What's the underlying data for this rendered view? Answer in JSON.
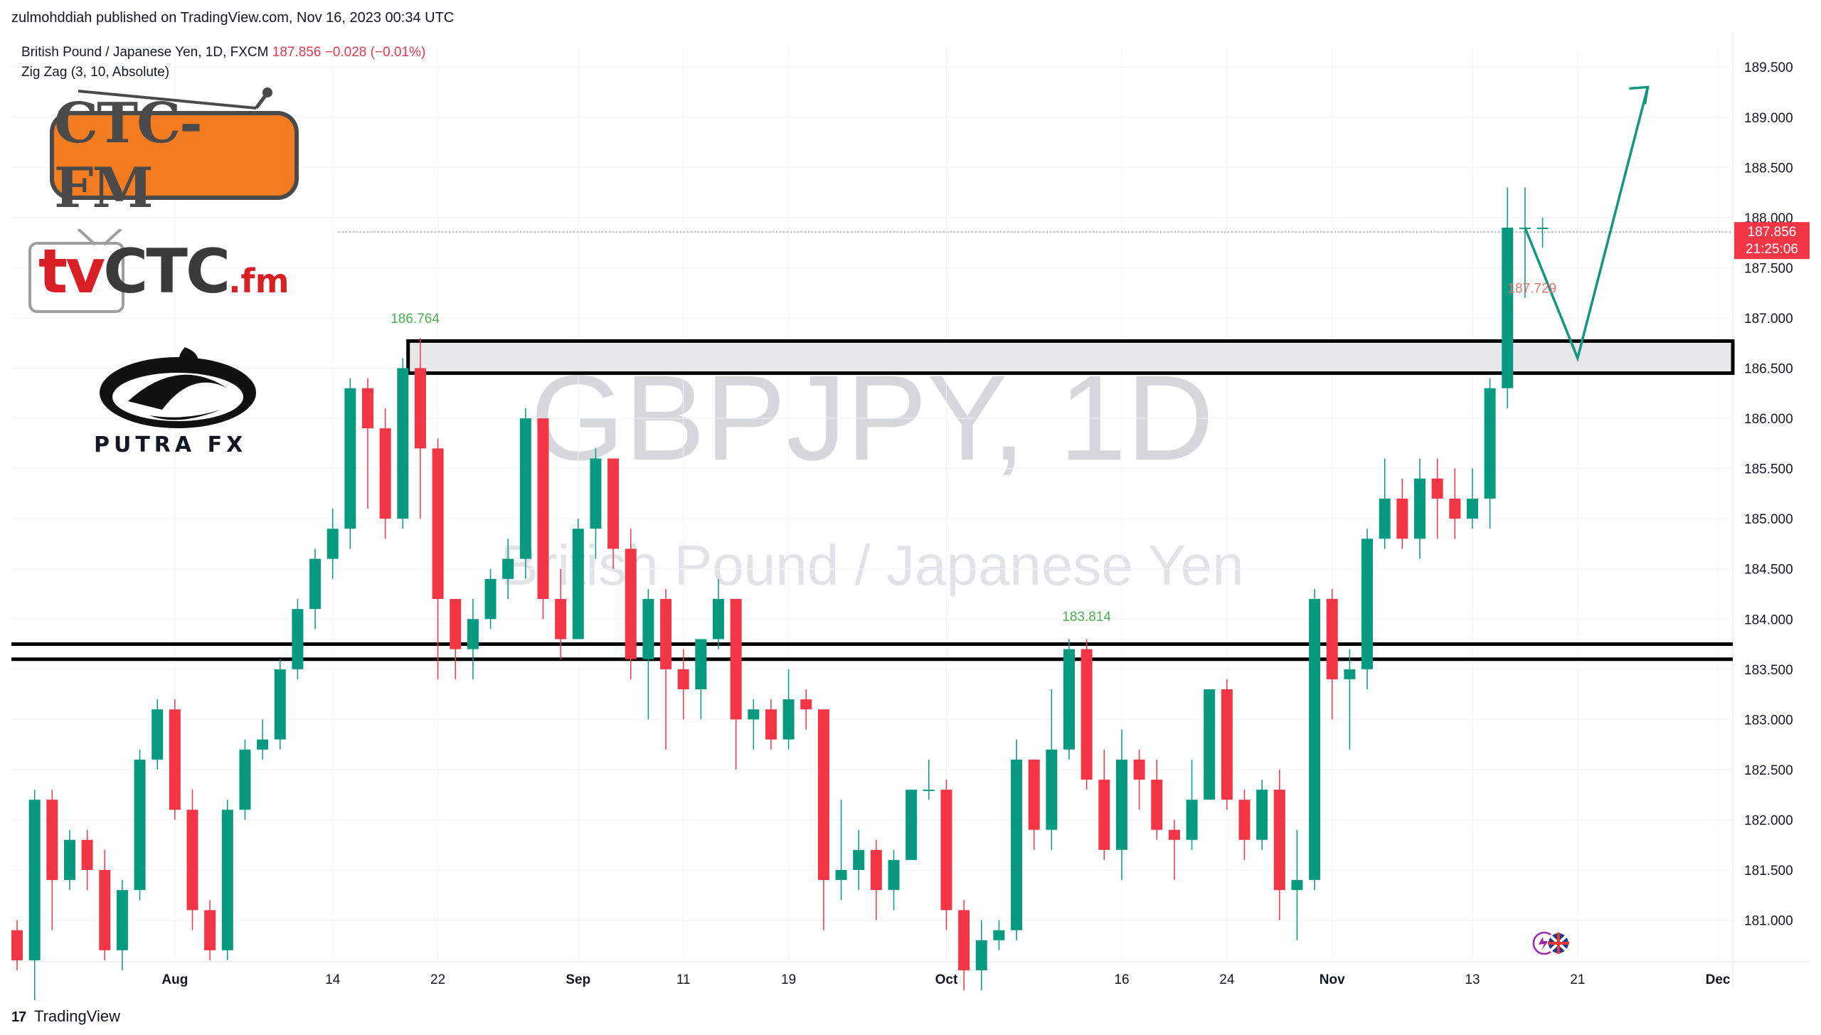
{
  "header": {
    "publish_line": "zulmohddiah published on TradingView.com, Nov 16, 2023 00:34 UTC"
  },
  "legend": {
    "symbol_line": "British Pound / Japanese Yen, 1D, FXCM",
    "last": "187.856",
    "change": "−0.028 (−0.01%)",
    "indicator": "Zig Zag (3, 10, Absolute)"
  },
  "logos": {
    "ctc_fm": "CTC-FM",
    "tvctc_tv": "tv",
    "tvctc_ctc": "CTC",
    "tvctc_fm": ".fm",
    "putra": "PUTRA FX"
  },
  "watermark": {
    "line1": "GBPJPY, 1D",
    "line2": "British Pound / Japanese Yen"
  },
  "branding": {
    "mark": "17",
    "name": "TradingView"
  },
  "colors": {
    "up": "#089981",
    "down": "#f23645",
    "grid": "#f0f3fa",
    "zone_fill": "#e8e8ea",
    "projection": "#15947f",
    "price_tag": "#f23645"
  },
  "chart_data": {
    "type": "candlestick",
    "symbol": "GBPJPY",
    "interval": "1D",
    "ylim": [
      180.6,
      189.7
    ],
    "y_ticks": [
      "181.000",
      "181.500",
      "182.000",
      "182.500",
      "183.000",
      "183.500",
      "184.000",
      "184.500",
      "185.000",
      "185.500",
      "186.000",
      "186.500",
      "187.000",
      "187.500",
      "188.000",
      "188.500",
      "189.000",
      "189.500"
    ],
    "x_ticks": [
      {
        "label": "Aug",
        "index": 9
      },
      {
        "label": "14",
        "index": 18
      },
      {
        "label": "22",
        "index": 24
      },
      {
        "label": "Sep",
        "index": 32
      },
      {
        "label": "11",
        "index": 38
      },
      {
        "label": "19",
        "index": 44
      },
      {
        "label": "Oct",
        "index": 53
      },
      {
        "label": "16",
        "index": 63
      },
      {
        "label": "24",
        "index": 69
      },
      {
        "label": "Nov",
        "index": 75
      },
      {
        "label": "13",
        "index": 83
      },
      {
        "label": "21",
        "index": 89
      },
      {
        "label": "Dec",
        "index": 97
      }
    ],
    "candles": [
      [
        180.9,
        180.6,
        181.0,
        180.5
      ],
      [
        180.6,
        182.2,
        182.3,
        180.2
      ],
      [
        182.2,
        181.4,
        182.3,
        180.9
      ],
      [
        181.4,
        181.8,
        181.9,
        181.3
      ],
      [
        181.8,
        181.5,
        181.9,
        181.3
      ],
      [
        181.5,
        180.7,
        181.7,
        180.6
      ],
      [
        180.7,
        181.3,
        181.4,
        180.5
      ],
      [
        181.3,
        182.6,
        182.7,
        181.2
      ],
      [
        182.6,
        183.1,
        183.2,
        182.5
      ],
      [
        183.1,
        182.1,
        183.2,
        182.0
      ],
      [
        182.1,
        181.1,
        182.3,
        180.9
      ],
      [
        181.1,
        180.7,
        181.2,
        180.6
      ],
      [
        180.7,
        182.1,
        182.2,
        180.6
      ],
      [
        182.1,
        182.7,
        182.8,
        182.0
      ],
      [
        182.7,
        182.8,
        183.0,
        182.6
      ],
      [
        182.8,
        183.5,
        183.6,
        182.7
      ],
      [
        183.5,
        184.1,
        184.2,
        183.4
      ],
      [
        184.1,
        184.6,
        184.7,
        183.9
      ],
      [
        184.6,
        184.9,
        185.1,
        184.4
      ],
      [
        184.9,
        186.3,
        186.4,
        184.7
      ],
      [
        186.3,
        185.9,
        186.4,
        185.1
      ],
      [
        185.9,
        185.0,
        186.1,
        184.8
      ],
      [
        185.0,
        186.5,
        186.6,
        184.9
      ],
      [
        186.5,
        185.7,
        186.8,
        185.0
      ],
      [
        185.7,
        184.2,
        185.8,
        183.4
      ],
      [
        184.2,
        183.7,
        184.2,
        183.4
      ],
      [
        183.7,
        184.0,
        184.2,
        183.4
      ],
      [
        184.0,
        184.4,
        184.5,
        183.9
      ],
      [
        184.4,
        184.6,
        184.8,
        184.2
      ],
      [
        184.6,
        186.0,
        186.1,
        184.4
      ],
      [
        186.0,
        184.2,
        186.0,
        184.0
      ],
      [
        184.2,
        183.8,
        184.5,
        183.6
      ],
      [
        183.8,
        184.9,
        185.0,
        183.8
      ],
      [
        184.9,
        185.6,
        185.7,
        184.6
      ],
      [
        185.6,
        184.7,
        185.6,
        184.5
      ],
      [
        184.7,
        183.6,
        184.9,
        183.4
      ],
      [
        183.6,
        184.2,
        184.3,
        183.0
      ],
      [
        184.2,
        183.5,
        184.3,
        182.7
      ],
      [
        183.5,
        183.3,
        183.7,
        183.0
      ],
      [
        183.3,
        183.8,
        183.8,
        183.0
      ],
      [
        183.8,
        184.2,
        184.4,
        183.7
      ],
      [
        184.2,
        183.0,
        184.2,
        182.5
      ],
      [
        183.0,
        183.1,
        183.2,
        182.7
      ],
      [
        183.1,
        182.8,
        183.2,
        182.7
      ],
      [
        182.8,
        183.2,
        183.5,
        182.7
      ],
      [
        183.2,
        183.1,
        183.3,
        182.9
      ],
      [
        183.1,
        181.4,
        183.1,
        180.9
      ],
      [
        181.4,
        181.5,
        182.2,
        181.2
      ],
      [
        181.5,
        181.7,
        181.9,
        181.3
      ],
      [
        181.7,
        181.3,
        181.8,
        181.0
      ],
      [
        181.3,
        181.6,
        181.7,
        181.1
      ],
      [
        181.6,
        182.3,
        182.3,
        181.6
      ],
      [
        182.3,
        182.3,
        182.6,
        182.2
      ],
      [
        182.3,
        181.1,
        182.4,
        180.9
      ],
      [
        181.1,
        180.5,
        181.2,
        180.3
      ],
      [
        180.5,
        180.8,
        181.0,
        180.3
      ],
      [
        180.8,
        180.9,
        181.0,
        180.7
      ],
      [
        180.9,
        182.6,
        182.8,
        180.8
      ],
      [
        182.6,
        181.9,
        182.6,
        181.7
      ],
      [
        181.9,
        182.7,
        183.3,
        181.7
      ],
      [
        182.7,
        183.7,
        183.8,
        182.6
      ],
      [
        183.7,
        182.4,
        183.8,
        182.3
      ],
      [
        182.4,
        181.7,
        182.7,
        181.6
      ],
      [
        181.7,
        182.6,
        182.9,
        181.4
      ],
      [
        182.6,
        182.4,
        182.7,
        182.1
      ],
      [
        182.4,
        181.9,
        182.6,
        181.8
      ],
      [
        181.9,
        181.8,
        182.0,
        181.4
      ],
      [
        181.8,
        182.2,
        182.6,
        181.7
      ],
      [
        182.2,
        183.3,
        183.3,
        182.2
      ],
      [
        183.3,
        182.2,
        183.4,
        182.1
      ],
      [
        182.2,
        181.8,
        182.3,
        181.6
      ],
      [
        181.8,
        182.3,
        182.4,
        181.7
      ],
      [
        182.3,
        181.3,
        182.5,
        181.0
      ],
      [
        181.3,
        181.4,
        181.9,
        180.8
      ],
      [
        181.4,
        184.2,
        184.3,
        181.3
      ],
      [
        184.2,
        183.4,
        184.3,
        183.0
      ],
      [
        183.4,
        183.5,
        183.7,
        182.7
      ],
      [
        183.5,
        184.8,
        184.9,
        183.3
      ],
      [
        184.8,
        185.2,
        185.6,
        184.7
      ],
      [
        185.2,
        184.8,
        185.4,
        184.7
      ],
      [
        184.8,
        185.4,
        185.6,
        184.6
      ],
      [
        185.4,
        185.2,
        185.6,
        184.8
      ],
      [
        185.2,
        185.0,
        185.5,
        184.8
      ],
      [
        185.0,
        185.2,
        185.5,
        184.9
      ],
      [
        185.2,
        186.3,
        186.4,
        184.9
      ],
      [
        186.3,
        187.9,
        188.3,
        186.1
      ],
      [
        187.9,
        187.9,
        188.3,
        187.2
      ],
      [
        187.9,
        187.9,
        188.0,
        187.7
      ]
    ],
    "levels": {
      "resistance_zone": [
        186.45,
        186.77
      ],
      "support_lines": [
        183.6,
        183.75
      ],
      "current_price_line": 187.856
    },
    "projection": [
      [
        86,
        187.9
      ],
      [
        89,
        186.6
      ],
      [
        93,
        189.3
      ]
    ],
    "annotations": [
      {
        "text": "186.764",
        "index": 22.7,
        "price": 186.95,
        "color": "#4caf50"
      },
      {
        "text": "183.814",
        "index": 61,
        "price": 183.98,
        "color": "#4caf50"
      },
      {
        "text": "187.729",
        "index": 86.4,
        "price": 187.25,
        "color": "#e57373"
      }
    ],
    "price_tag": {
      "price": "187.856",
      "countdown": "21:25:06"
    }
  }
}
